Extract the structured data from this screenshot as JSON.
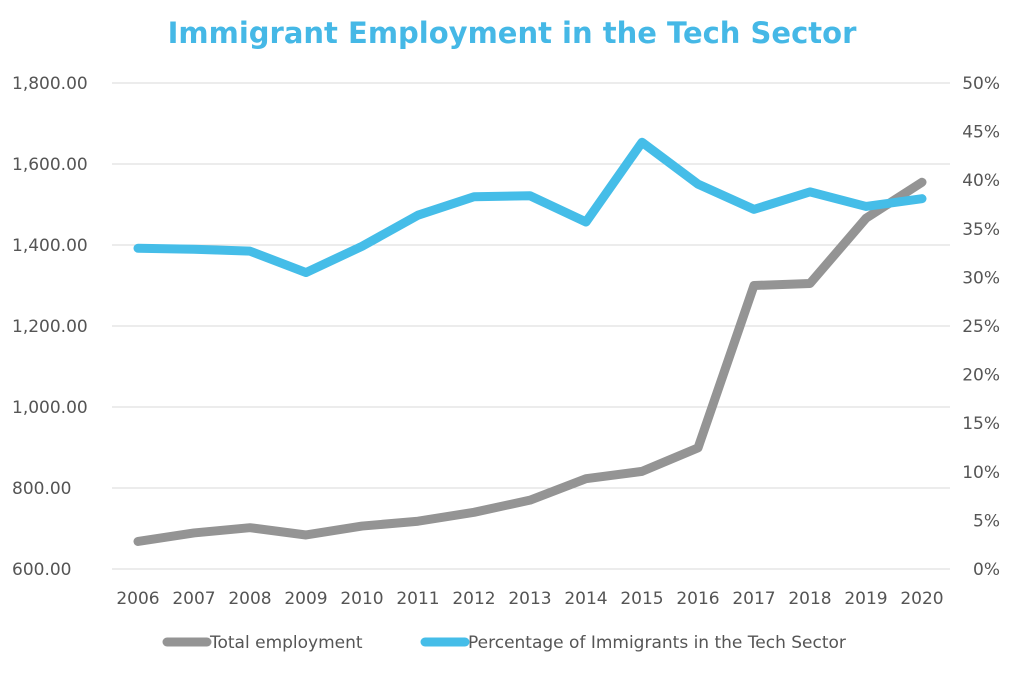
{
  "chart_data": {
    "type": "line",
    "title": "Immigrant Employment in the Tech Sector",
    "x": [
      "2006",
      "2007",
      "2008",
      "2009",
      "2010",
      "2011",
      "2012",
      "2013",
      "2014",
      "2015",
      "2016",
      "2017",
      "2018",
      "2019",
      "2020"
    ],
    "series": [
      {
        "name": "Total employment",
        "axis": "left",
        "color": "#949494",
        "values": [
          668,
          689,
          702,
          684,
          706,
          718,
          740,
          770,
          823,
          841,
          899,
          1300,
          1305,
          1466,
          1555
        ]
      },
      {
        "name": "Percentage of Immigrants in the Tech Sector",
        "axis": "right",
        "color": "#45bde8",
        "values": [
          0.33,
          0.329,
          0.327,
          0.305,
          0.332,
          0.364,
          0.383,
          0.384,
          0.357,
          0.439,
          0.396,
          0.37,
          0.388,
          0.373,
          0.381
        ]
      }
    ],
    "left_axis": {
      "ylim": [
        600,
        1800
      ],
      "ticks": [
        600,
        800,
        1000,
        1200,
        1400,
        1600,
        1800
      ],
      "tick_labels": [
        "600.00",
        "800.00",
        "1,000.00",
        "1,200.00",
        "1,400.00",
        "1,600.00",
        "1,800.00"
      ]
    },
    "right_axis": {
      "ylim": [
        0,
        0.5
      ],
      "ticks": [
        0,
        0.05,
        0.1,
        0.15,
        0.2,
        0.25,
        0.3,
        0.35,
        0.4,
        0.45,
        0.5
      ],
      "tick_labels": [
        "0%",
        "5%",
        "10%",
        "15%",
        "20%",
        "25%",
        "30%",
        "35%",
        "40%",
        "45%",
        "50%"
      ]
    },
    "grid": true,
    "legend_position": "bottom",
    "xlabel": "",
    "ylabel": "",
    "gridline_color": "#d9d9d9"
  }
}
